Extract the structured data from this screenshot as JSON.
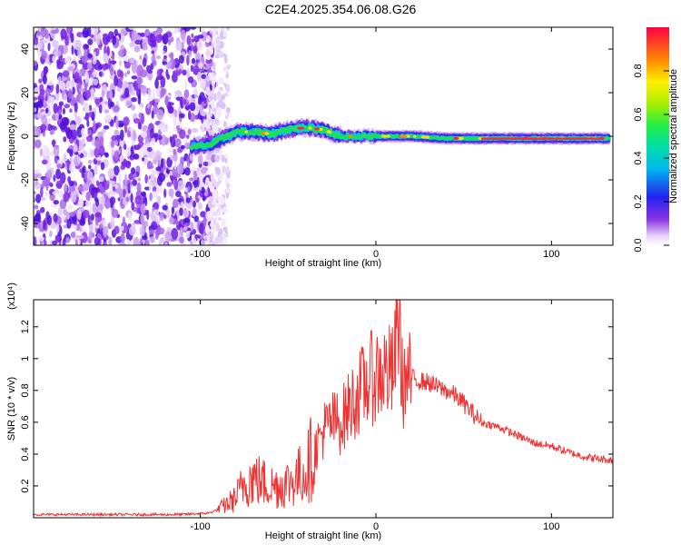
{
  "title": "C2E4.2025.354.06.08.G26",
  "chart_data": [
    {
      "type": "heatmap",
      "name": "spectrogram",
      "xlabel": "Height of straight line (km)",
      "ylabel": "Frequency (Hz)",
      "xlim": [
        -195,
        135
      ],
      "ylim": [
        -50,
        50
      ],
      "xticks": [
        -100,
        0,
        100
      ],
      "yticks": [
        -40,
        -20,
        0,
        20,
        40
      ],
      "noise_region_x": [
        -195,
        -92
      ],
      "signal_track": {
        "x": [
          -105,
          -95,
          -85,
          -78,
          -70,
          -60,
          -50,
          -40,
          -30,
          -20,
          -10,
          0,
          20,
          40,
          60,
          80,
          100,
          120,
          133
        ],
        "y": [
          -5,
          -4,
          0,
          2,
          2,
          1,
          3,
          4,
          3,
          0,
          0,
          0,
          0,
          -1,
          -1,
          -1,
          -1,
          -1,
          -1
        ]
      },
      "colorbar": {
        "label": "Normalized spectral amplitude",
        "range": [
          0,
          1
        ],
        "ticks": [
          0.0,
          0.2,
          0.4,
          0.6,
          0.8
        ]
      }
    },
    {
      "type": "line",
      "name": "snr",
      "xlabel": "Height of straight line (km)",
      "ylabel": "SNR (10 * v/v)",
      "y_scale_label": "(x10⁴)",
      "xlim": [
        -195,
        135
      ],
      "ylim": [
        0,
        1.37
      ],
      "xticks": [
        -100,
        0,
        100
      ],
      "yticks": [
        0.2,
        0.4,
        0.6,
        0.8,
        1.0,
        1.2
      ],
      "series": [
        {
          "name": "SNR",
          "color": "#ee3333",
          "x": [
            -195,
            -150,
            -110,
            -95,
            -90,
            -80,
            -75,
            -70,
            -60,
            -55,
            -50,
            -45,
            -40,
            -35,
            -30,
            -25,
            -20,
            -15,
            -10,
            -5,
            0,
            5,
            10,
            13,
            15,
            20,
            25,
            30,
            35,
            40,
            45,
            50,
            55,
            60,
            70,
            80,
            90,
            100,
            110,
            120,
            135
          ],
          "y": [
            0.02,
            0.02,
            0.02,
            0.03,
            0.05,
            0.12,
            0.22,
            0.25,
            0.2,
            0.2,
            0.22,
            0.25,
            0.3,
            0.42,
            0.55,
            0.6,
            0.6,
            0.7,
            0.78,
            0.85,
            0.9,
            0.92,
            0.9,
            1.28,
            0.85,
            0.88,
            0.86,
            0.85,
            0.82,
            0.8,
            0.77,
            0.72,
            0.66,
            0.6,
            0.57,
            0.52,
            0.47,
            0.45,
            0.41,
            0.38,
            0.36
          ]
        }
      ]
    }
  ]
}
